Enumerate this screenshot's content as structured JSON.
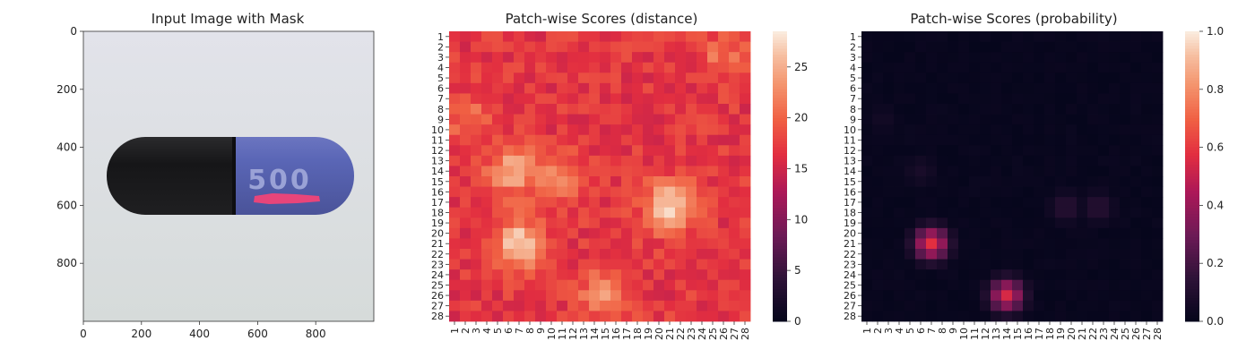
{
  "chart_data": [
    {
      "type": "image",
      "title": "Input Image with Mask",
      "x_ticks": [
        "0",
        "200",
        "400",
        "600",
        "800"
      ],
      "y_ticks": [
        "0",
        "200",
        "400",
        "600",
        "800"
      ],
      "capsule_label": "500",
      "colors": {
        "background": "#dcdfe4",
        "dark_half": "#1c1c1e",
        "blue_half": "#5561b0",
        "mask": "#e8457a"
      }
    },
    {
      "type": "heatmap",
      "title": "Patch-wise Scores (distance)",
      "x_ticks": [
        "1",
        "2",
        "3",
        "4",
        "5",
        "6",
        "7",
        "8",
        "9",
        "10",
        "11",
        "12",
        "13",
        "14",
        "15",
        "16",
        "17",
        "18",
        "19",
        "20",
        "21",
        "22",
        "23",
        "24",
        "25",
        "26",
        "27",
        "28"
      ],
      "y_ticks": [
        "1",
        "2",
        "3",
        "4",
        "5",
        "6",
        "7",
        "8",
        "9",
        "10",
        "11",
        "12",
        "13",
        "14",
        "15",
        "16",
        "17",
        "18",
        "19",
        "20",
        "21",
        "22",
        "23",
        "24",
        "25",
        "26",
        "27",
        "28"
      ],
      "colorbar_ticks": [
        "0",
        "5",
        "10",
        "15",
        "20",
        "25"
      ],
      "vmin": 0,
      "vmax": 28.5,
      "base": 17,
      "hot_regions": [
        {
          "row": 14,
          "col": 6.5,
          "value": 25
        },
        {
          "row": 15,
          "col": 11,
          "value": 22
        },
        {
          "row": 17.5,
          "col": 21,
          "value": 28
        },
        {
          "row": 21,
          "col": 7,
          "value": 27
        },
        {
          "row": 26,
          "col": 15,
          "value": 23
        },
        {
          "row": 9,
          "col": 2.5,
          "value": 21
        },
        {
          "row": 3,
          "col": 26,
          "value": 21
        }
      ],
      "colormap": "rocket"
    },
    {
      "type": "heatmap",
      "title": "Patch-wise Scores (probability)",
      "x_ticks": [
        "1",
        "2",
        "3",
        "4",
        "5",
        "6",
        "7",
        "8",
        "9",
        "10",
        "11",
        "12",
        "13",
        "14",
        "15",
        "16",
        "17",
        "18",
        "19",
        "20",
        "21",
        "22",
        "23",
        "24",
        "25",
        "26",
        "27",
        "28"
      ],
      "y_ticks": [
        "1",
        "2",
        "3",
        "4",
        "5",
        "6",
        "7",
        "8",
        "9",
        "10",
        "11",
        "12",
        "13",
        "14",
        "15",
        "16",
        "17",
        "18",
        "19",
        "20",
        "21",
        "22",
        "23",
        "24",
        "25",
        "26",
        "27",
        "28"
      ],
      "colorbar_ticks": [
        "0.0",
        "0.2",
        "0.4",
        "0.6",
        "0.8",
        "1.0"
      ],
      "vmin": 0,
      "vmax": 1,
      "hot_regions": [
        {
          "row": 21,
          "col": 7,
          "value": 0.58
        },
        {
          "row": 26,
          "col": 14,
          "value": 0.55
        },
        {
          "row": 17.5,
          "col": 19.5,
          "value": 0.13
        },
        {
          "row": 17.5,
          "col": 22.5,
          "value": 0.13
        },
        {
          "row": 14,
          "col": 6,
          "value": 0.08
        },
        {
          "row": 9,
          "col": 2.5,
          "value": 0.06
        }
      ],
      "colormap": "rocket"
    }
  ]
}
